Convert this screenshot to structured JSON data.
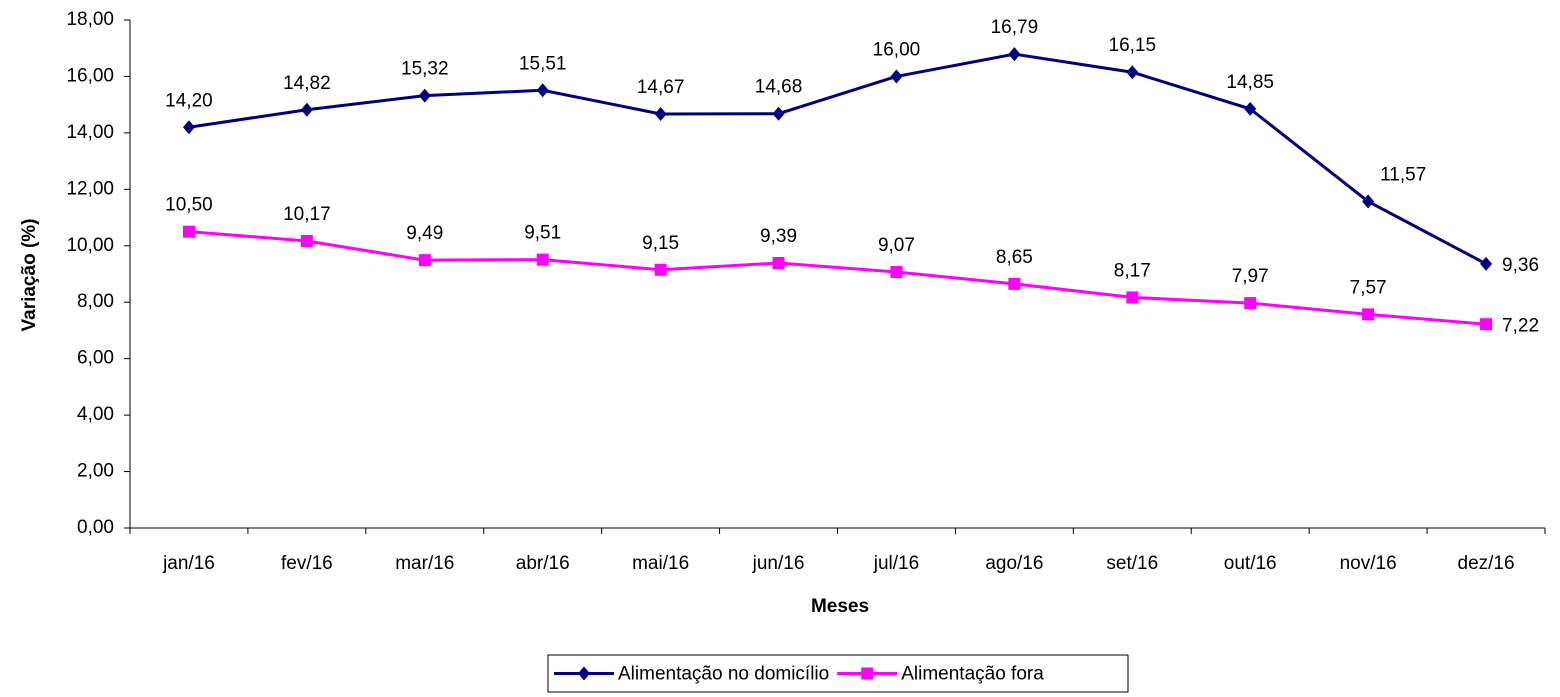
{
  "chart_data": {
    "type": "line",
    "x_label": "Meses",
    "y_label": "Variação (%)",
    "categories": [
      "jan/16",
      "fev/16",
      "mar/16",
      "abr/16",
      "mai/16",
      "jun/16",
      "jul/16",
      "ago/16",
      "set/16",
      "out/16",
      "nov/16",
      "dez/16"
    ],
    "series": [
      {
        "name": "Alimentação no domicílio",
        "color": "#000080",
        "marker": "diamond",
        "values": [
          14.2,
          14.82,
          15.32,
          15.51,
          14.67,
          14.68,
          16.0,
          16.79,
          16.15,
          14.85,
          11.57,
          9.36
        ],
        "value_labels": [
          "14,20",
          "14,82",
          "15,32",
          "15,51",
          "14,67",
          "14,68",
          "16,00",
          "16,79",
          "16,15",
          "14,85",
          "11,57",
          "9,36"
        ]
      },
      {
        "name": "Alimentação fora",
        "color": "#ff00ff",
        "marker": "square",
        "values": [
          10.5,
          10.17,
          9.49,
          9.51,
          9.15,
          9.39,
          9.07,
          8.65,
          8.17,
          7.97,
          7.57,
          7.22
        ],
        "value_labels": [
          "10,50",
          "10,17",
          "9,49",
          "9,51",
          "9,15",
          "9,39",
          "9,07",
          "8,65",
          "8,17",
          "7,97",
          "7,57",
          "7,22"
        ]
      }
    ],
    "ylim": [
      0,
      18
    ],
    "yticks": [
      {
        "value": 0,
        "label": "0,00"
      },
      {
        "value": 2,
        "label": "2,00"
      },
      {
        "value": 4,
        "label": "4,00"
      },
      {
        "value": 6,
        "label": "6,00"
      },
      {
        "value": 8,
        "label": "8,00"
      },
      {
        "value": 10,
        "label": "10,00"
      },
      {
        "value": 12,
        "label": "12,00"
      },
      {
        "value": 14,
        "label": "14,00"
      },
      {
        "value": 16,
        "label": "16,00"
      },
      {
        "value": 18,
        "label": "18,00"
      }
    ],
    "grid": false,
    "legend": "bottom"
  }
}
